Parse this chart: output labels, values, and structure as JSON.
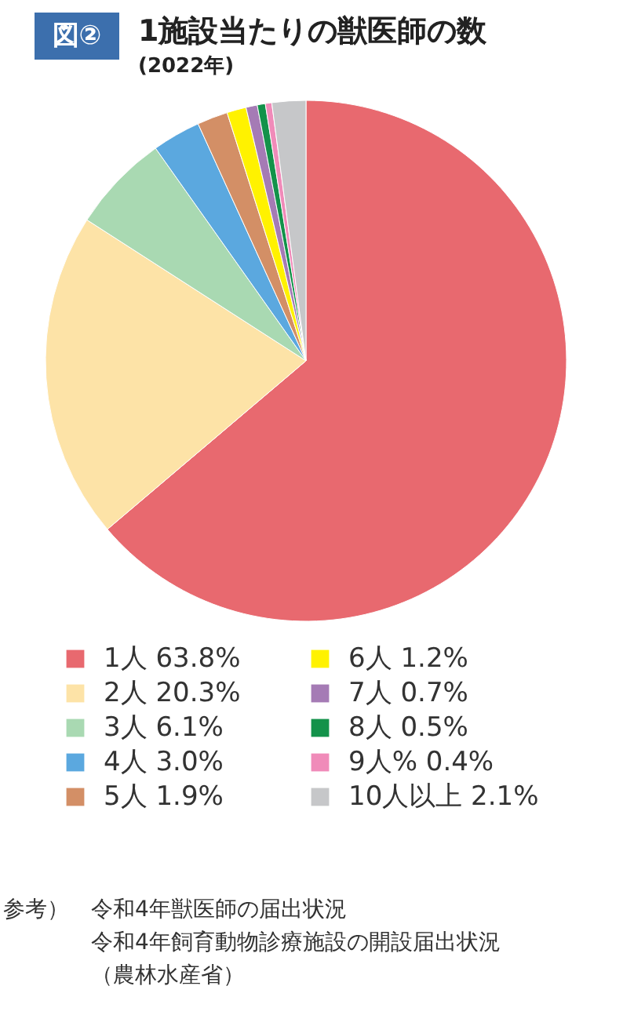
{
  "chart_data": {
    "type": "pie",
    "title": "1施設当たりの獣医師の数",
    "subtitle": "(2022年)",
    "categories": [
      "1人",
      "2人",
      "3人",
      "4人",
      "5人",
      "6人",
      "7人",
      "8人",
      "9人%",
      "10人以上"
    ],
    "values": [
      63.8,
      20.3,
      6.1,
      3.0,
      1.9,
      1.2,
      0.7,
      0.5,
      0.4,
      2.1
    ],
    "value_labels": [
      "63.8%",
      "20.3%",
      "6.1%",
      "3.0%",
      "1.9%",
      "1.2%",
      "0.7%",
      "0.5%",
      "0.4%",
      "2.1%"
    ],
    "colors": [
      "#e8696f",
      "#fde3a7",
      "#a9d9b2",
      "#5ba8df",
      "#d38f66",
      "#fff200",
      "#a57bb5",
      "#13924a",
      "#f08bb9",
      "#c6c7c9"
    ],
    "legend": "bottom",
    "annotations": [
      "図②",
      "参考）",
      "令和4年獣医師の届出状況",
      "令和4年飼育動物診療施設の開設届出状況",
      "（農林水産省）"
    ]
  }
}
